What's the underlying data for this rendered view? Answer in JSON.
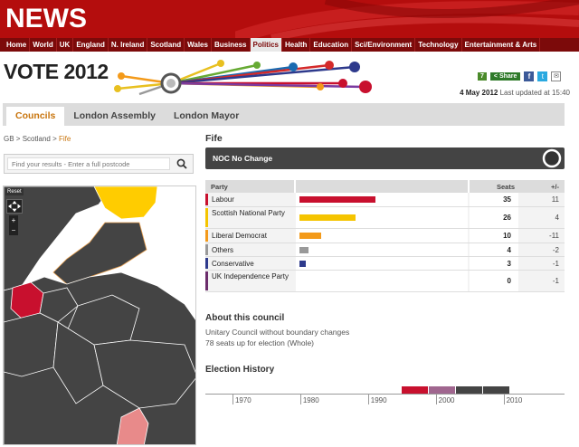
{
  "site": {
    "logo": "NEWS"
  },
  "nav": [
    "Home",
    "World",
    "UK",
    "England",
    "N. Ireland",
    "Scotland",
    "Wales",
    "Business",
    "Politics",
    "Health",
    "Education",
    "Sci/Environment",
    "Technology",
    "Entertainment & Arts"
  ],
  "nav_active": "Politics",
  "banner": {
    "title": "VOTE 2012"
  },
  "share": {
    "count": "7",
    "label": "Share",
    "fb": "f",
    "tw": "t",
    "em": "✉"
  },
  "updated": {
    "date": "4 May 2012",
    "text": "Last updated at 15:40"
  },
  "tabs": [
    {
      "label": "Councils",
      "active": true
    },
    {
      "label": "London Assembly",
      "active": false
    },
    {
      "label": "London Mayor",
      "active": false
    }
  ],
  "breadcrumb": {
    "a": "GB",
    "b": "Scotland",
    "current": "Fife",
    "sep": ">"
  },
  "search": {
    "placeholder": "Find your results - Enter a full postcode"
  },
  "map": {
    "reset": "Reset",
    "zoom_in": "+",
    "zoom_out": "−"
  },
  "council": {
    "name": "Fife",
    "result": "NOC No Change"
  },
  "table": {
    "headers": {
      "party": "Party",
      "seats": "Seats",
      "change": "+/-"
    },
    "rows": [
      {
        "party": "Labour",
        "seats": 35,
        "change": "11",
        "color": "#c8102e"
      },
      {
        "party": "Scottish National Party",
        "seats": 26,
        "change": "4",
        "color": "#f5c400"
      },
      {
        "party": "Liberal Democrat",
        "seats": 10,
        "change": "-11",
        "color": "#f39a1a"
      },
      {
        "party": "Others",
        "seats": 4,
        "change": "-2",
        "color": "#999999"
      },
      {
        "party": "Conservative",
        "seats": 3,
        "change": "-1",
        "color": "#2e3a8c"
      },
      {
        "party": "UK Independence Party",
        "seats": 0,
        "change": "-1",
        "color": "#6b2d6b"
      }
    ]
  },
  "about": {
    "heading": "About this council",
    "line1": "Unitary Council without boundary changes",
    "line2": "78 seats up for election (Whole)"
  },
  "history": {
    "heading": "Election History",
    "years": [
      "1970",
      "1980",
      "1990",
      "2000",
      "2010"
    ],
    "periods": [
      {
        "from": 1995,
        "to": 1999,
        "color": "#c8102e"
      },
      {
        "from": 1999,
        "to": 2003,
        "color": "#a0668f"
      },
      {
        "from": 2003,
        "to": 2007,
        "color": "#444444"
      },
      {
        "from": 2007,
        "to": 2011,
        "color": "#444444"
      }
    ]
  }
}
